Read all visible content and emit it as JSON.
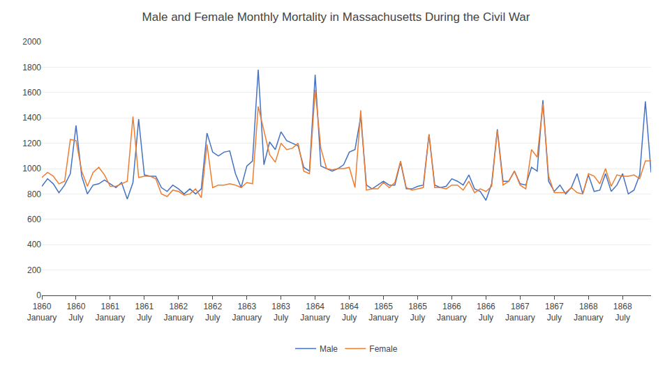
{
  "chart_data": {
    "type": "line",
    "title": "Male and Female Monthly Mortality in Massachusetts During the Civil War",
    "categories": [
      "1860\nJanuary",
      null,
      null,
      null,
      null,
      null,
      "1860\nJuly",
      null,
      null,
      null,
      null,
      null,
      "1861\nJanuary",
      null,
      null,
      null,
      null,
      null,
      "1861\nJuly",
      null,
      null,
      null,
      null,
      null,
      "1862\nJanuary",
      null,
      null,
      null,
      null,
      null,
      "1862\nJuly",
      null,
      null,
      null,
      null,
      null,
      "1863\nJanuary",
      null,
      null,
      null,
      null,
      null,
      "1863\nJuly",
      null,
      null,
      null,
      null,
      null,
      "1864\nJanuary",
      null,
      null,
      null,
      null,
      null,
      "1864\nJuly",
      null,
      null,
      null,
      null,
      null,
      "1865\nJanuary",
      null,
      null,
      null,
      null,
      null,
      "1865\nJuly",
      null,
      null,
      null,
      null,
      null,
      "1866\nJanuary",
      null,
      null,
      null,
      null,
      null,
      "1866\nJuly",
      null,
      null,
      null,
      null,
      null,
      "1867\nJanuary",
      null,
      null,
      null,
      null,
      null,
      "1867\nJuly",
      null,
      null,
      null,
      null,
      null,
      "1868\nJanuary",
      null,
      null,
      null,
      null,
      null,
      "1868\nJuly",
      null,
      null,
      null,
      null,
      null
    ],
    "series": [
      {
        "name": "Male",
        "color": "#4472C4",
        "values": [
          860,
          920,
          880,
          810,
          870,
          960,
          1340,
          940,
          800,
          870,
          880,
          910,
          880,
          850,
          890,
          760,
          890,
          1390,
          950,
          940,
          940,
          850,
          820,
          870,
          840,
          800,
          840,
          800,
          840,
          1280,
          1130,
          1100,
          1130,
          1140,
          960,
          850,
          1020,
          1060,
          1780,
          1030,
          1210,
          1150,
          1290,
          1220,
          1200,
          1180,
          1010,
          980,
          1740,
          1020,
          1000,
          980,
          1000,
          1030,
          1130,
          1150,
          1410,
          870,
          840,
          870,
          900,
          870,
          870,
          1050,
          840,
          840,
          860,
          870,
          1270,
          870,
          850,
          860,
          920,
          900,
          870,
          950,
          840,
          820,
          750,
          880,
          1310,
          900,
          900,
          980,
          880,
          870,
          1010,
          980,
          1540,
          900,
          820,
          870,
          800,
          850,
          960,
          800,
          950,
          820,
          830,
          960,
          820,
          870,
          960,
          800,
          830,
          950,
          1530,
          970
        ]
      },
      {
        "name": "Female",
        "color": "#ED7D31",
        "values": [
          930,
          970,
          940,
          880,
          900,
          1230,
          1220,
          980,
          860,
          970,
          1010,
          950,
          860,
          860,
          880,
          900,
          1410,
          930,
          940,
          940,
          920,
          800,
          780,
          830,
          820,
          790,
          800,
          840,
          770,
          1190,
          850,
          870,
          870,
          880,
          870,
          850,
          890,
          880,
          1490,
          1300,
          1110,
          1050,
          1200,
          1150,
          1160,
          1200,
          980,
          960,
          1620,
          1160,
          1000,
          990,
          1000,
          1000,
          1010,
          850,
          1460,
          830,
          840,
          840,
          890,
          850,
          890,
          1060,
          850,
          830,
          840,
          850,
          1270,
          850,
          850,
          840,
          870,
          870,
          830,
          900,
          810,
          840,
          820,
          860,
          1300,
          870,
          900,
          980,
          870,
          840,
          1150,
          1090,
          1510,
          940,
          810,
          810,
          810,
          850,
          810,
          800,
          960,
          940,
          880,
          1000,
          860,
          950,
          940,
          940,
          950,
          920,
          1060,
          1060
        ]
      }
    ],
    "ylim": [
      0,
      2000
    ],
    "yticks": [
      0,
      200,
      400,
      600,
      800,
      1000,
      1200,
      1400,
      1600,
      1800,
      2000
    ],
    "grid": true,
    "legend": "bottom"
  }
}
